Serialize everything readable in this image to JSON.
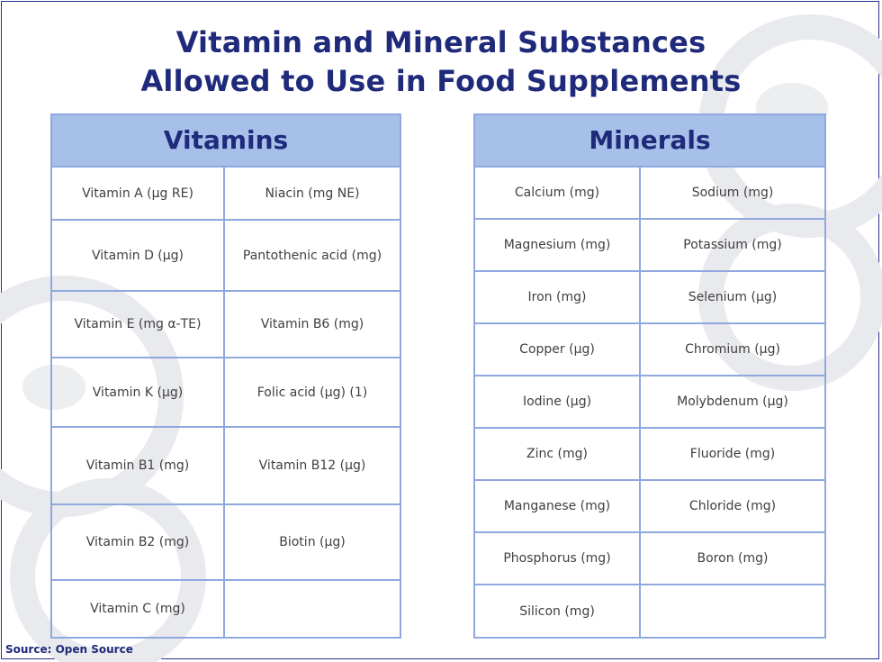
{
  "title": {
    "line1": "Vitamin and Mineral Substances",
    "line2": "Allowed to Use in Food Supplements"
  },
  "vitamins": {
    "header": "Vitamins",
    "rows": [
      [
        "Vitamin A (µg RE)",
        "Niacin (mg NE)"
      ],
      [
        "Vitamin D (µg)",
        "Pantothenic acid (mg)"
      ],
      [
        "Vitamin E (mg α-TE)",
        "Vitamin B6 (mg)"
      ],
      [
        "Vitamin K (µg)",
        "Folic acid (µg) (1)"
      ],
      [
        "Vitamin B1 (mg)",
        "Vitamin B12 (µg)"
      ],
      [
        "Vitamin B2 (mg)",
        "Biotin (µg)"
      ],
      [
        "Vitamin C (mg)",
        ""
      ]
    ]
  },
  "minerals": {
    "header": "Minerals",
    "rows": [
      [
        "Calcium (mg)",
        "Sodium (mg)"
      ],
      [
        "Magnesium (mg)",
        "Potassium (mg)"
      ],
      [
        "Iron (mg)",
        "Selenium (µg)"
      ],
      [
        "Copper (µg)",
        "Chromium (µg)"
      ],
      [
        "Iodine (µg)",
        "Molybdenum (µg)"
      ],
      [
        "Zinc (mg)",
        "Fluoride (mg)"
      ],
      [
        "Manganese (mg)",
        "Chloride (mg)"
      ],
      [
        "Phosphorus (mg)",
        "Boron (mg)"
      ],
      [
        "Silicon (mg)",
        ""
      ]
    ]
  },
  "source": "Source: Open Source",
  "colors": {
    "title": "#1f2a7a",
    "header_bg": "#a6c0ea",
    "border": "#8fa8df",
    "watermark": "#e6e7ea"
  }
}
